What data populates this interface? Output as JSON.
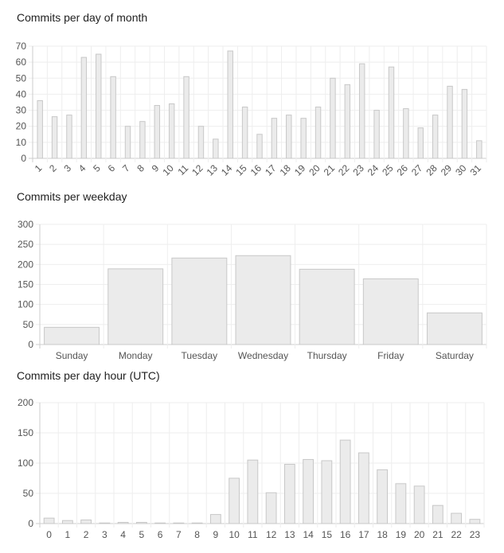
{
  "chart_data": [
    {
      "type": "bar",
      "title": "Commits per day of month",
      "categories": [
        "1",
        "2",
        "3",
        "4",
        "5",
        "6",
        "7",
        "8",
        "9",
        "10",
        "11",
        "12",
        "13",
        "14",
        "15",
        "16",
        "17",
        "18",
        "19",
        "20",
        "21",
        "22",
        "23",
        "24",
        "25",
        "26",
        "27",
        "28",
        "29",
        "30",
        "31"
      ],
      "values": [
        36,
        26,
        27,
        63,
        65,
        51,
        20,
        23,
        33,
        34,
        51,
        20,
        12,
        67,
        32,
        15,
        25,
        27,
        25,
        32,
        50,
        46,
        59,
        30,
        57,
        31,
        19,
        27,
        45,
        43,
        11
      ],
      "ylim": [
        0,
        70
      ],
      "yticks": [
        0,
        10,
        20,
        30,
        40,
        50,
        60,
        70
      ],
      "xlabel": "",
      "ylabel": "",
      "grid": true,
      "tick_rotation": 45
    },
    {
      "type": "bar",
      "title": "Commits per weekday",
      "categories": [
        "Sunday",
        "Monday",
        "Tuesday",
        "Wednesday",
        "Thursday",
        "Friday",
        "Saturday"
      ],
      "values": [
        43,
        189,
        216,
        222,
        188,
        164,
        79
      ],
      "ylim": [
        0,
        300
      ],
      "yticks": [
        0,
        50,
        100,
        150,
        200,
        250,
        300
      ],
      "xlabel": "",
      "ylabel": "",
      "grid": true,
      "tick_rotation": 0
    },
    {
      "type": "bar",
      "title": "Commits per day hour (UTC)",
      "categories": [
        "0",
        "1",
        "2",
        "3",
        "4",
        "5",
        "6",
        "7",
        "8",
        "9",
        "10",
        "11",
        "12",
        "13",
        "14",
        "15",
        "16",
        "17",
        "18",
        "19",
        "20",
        "21",
        "22",
        "23"
      ],
      "values": [
        9,
        5,
        6,
        1,
        2,
        2,
        1,
        1,
        1,
        15,
        75,
        105,
        51,
        98,
        106,
        104,
        138,
        117,
        89,
        66,
        62,
        30,
        17,
        7
      ],
      "ylim": [
        0,
        200
      ],
      "yticks": [
        0,
        50,
        100,
        150,
        200
      ],
      "xlabel": "",
      "ylabel": "",
      "grid": true,
      "tick_rotation": 0
    }
  ],
  "colors": {
    "bar_fill": "#ebebeb",
    "bar_stroke": "#c8c8c8",
    "grid": "#eeeeee",
    "axis": "#cccccc"
  }
}
